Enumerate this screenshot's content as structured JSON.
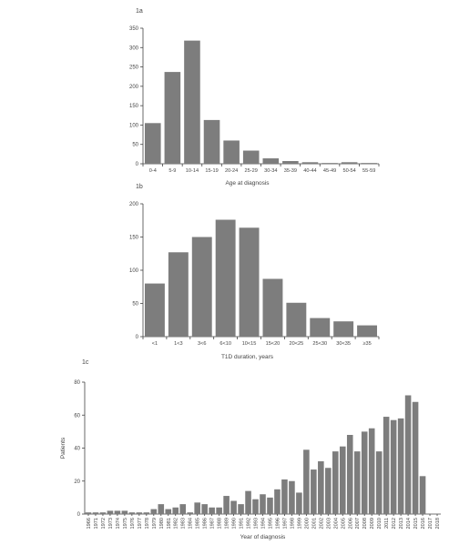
{
  "chart_data": [
    {
      "type": "bar",
      "panel_label": "1a",
      "categories": [
        "0-4",
        "5-9",
        "10-14",
        "15-19",
        "20-24",
        "25-29",
        "30-34",
        "35-39",
        "40-44",
        "45-49",
        "50-54",
        "55-59"
      ],
      "values": [
        105,
        237,
        318,
        113,
        60,
        34,
        14,
        7,
        4,
        2,
        4,
        2
      ],
      "xlabel": "Age at diagnosis",
      "ylabel": "",
      "ylim": [
        0,
        350
      ],
      "yticks": [
        0,
        50,
        100,
        150,
        200,
        250,
        300,
        350
      ]
    },
    {
      "type": "bar",
      "panel_label": "1b",
      "categories": [
        "<1",
        "1<3",
        "3<6",
        "6<10",
        "10<15",
        "15<20",
        "20<25",
        "25<30",
        "30<35",
        "≥35"
      ],
      "values": [
        80,
        127,
        150,
        176,
        164,
        87,
        51,
        28,
        23,
        17
      ],
      "xlabel": "T1D duration, years",
      "ylabel": "",
      "ylim": [
        0,
        200
      ],
      "yticks": [
        0,
        50,
        100,
        150,
        200
      ]
    },
    {
      "type": "bar",
      "panel_label": "1c",
      "categories": [
        "1966",
        "1971",
        "1972",
        "1973",
        "1974",
        "1975",
        "1976",
        "1977",
        "1978",
        "1979",
        "1980",
        "1981",
        "1982",
        "1983",
        "1984",
        "1985",
        "1986",
        "1987",
        "1988",
        "1989",
        "1990",
        "1991",
        "1992",
        "1993",
        "1994",
        "1995",
        "1996",
        "1997",
        "1998",
        "1999",
        "2000",
        "2001",
        "2002",
        "2003",
        "2004",
        "2005",
        "2006",
        "2007",
        "2008",
        "2009",
        "2010",
        "2011",
        "2012",
        "2013",
        "2014",
        "2015",
        "2016",
        "2017",
        "2018"
      ],
      "values": [
        1,
        1,
        1,
        2,
        2,
        2,
        1,
        1,
        1,
        3,
        6,
        3,
        4,
        6,
        1,
        7,
        6,
        4,
        4,
        11,
        8,
        6,
        14,
        9,
        12,
        10,
        15,
        21,
        20,
        13,
        39,
        27,
        32,
        28,
        38,
        41,
        48,
        38,
        50,
        52,
        38,
        59,
        57,
        58,
        72,
        68,
        23,
        0,
        0
      ],
      "xlabel": "Year of diagnosis",
      "ylabel": "Patients",
      "ylim": [
        0,
        80
      ],
      "yticks": [
        0,
        20,
        40,
        60,
        80
      ]
    }
  ]
}
